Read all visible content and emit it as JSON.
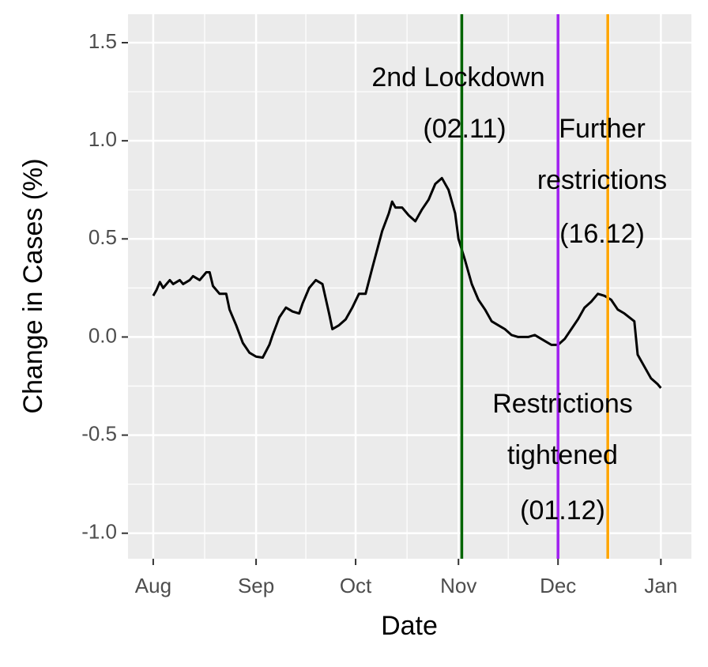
{
  "chart_data": {
    "type": "line",
    "x_label": "Date",
    "y_label": "Change in Cases (%)",
    "x": [
      0,
      1,
      2,
      3,
      5,
      6,
      8,
      9,
      11,
      12,
      14,
      16,
      17,
      18,
      20,
      22,
      23,
      25,
      27,
      29,
      31,
      33,
      35,
      36,
      38,
      40,
      42,
      44,
      45,
      47,
      49,
      51,
      53,
      54,
      56,
      58,
      60,
      62,
      64,
      66,
      69,
      71,
      72,
      73,
      75,
      77,
      79,
      81,
      83,
      85,
      87,
      89,
      91,
      92,
      94,
      96,
      98,
      100,
      102,
      104,
      106,
      108,
      110,
      113,
      115,
      118,
      120,
      122,
      124,
      126,
      128,
      130,
      132,
      134,
      136,
      138,
      140,
      142,
      145,
      146,
      148,
      150,
      152,
      153
    ],
    "values": [
      0.21,
      0.24,
      0.28,
      0.25,
      0.29,
      0.27,
      0.29,
      0.27,
      0.29,
      0.31,
      0.29,
      0.33,
      0.33,
      0.26,
      0.22,
      0.22,
      0.14,
      0.06,
      -0.03,
      -0.08,
      -0.1,
      -0.105,
      -0.04,
      0.01,
      0.1,
      0.15,
      0.13,
      0.12,
      0.17,
      0.25,
      0.29,
      0.27,
      0.12,
      0.04,
      0.06,
      0.09,
      0.15,
      0.22,
      0.22,
      0.35,
      0.54,
      0.63,
      0.69,
      0.66,
      0.66,
      0.62,
      0.59,
      0.65,
      0.7,
      0.78,
      0.81,
      0.75,
      0.63,
      0.5,
      0.39,
      0.27,
      0.19,
      0.14,
      0.08,
      0.06,
      0.04,
      0.01,
      0,
      0,
      0.01,
      -0.02,
      -0.04,
      -0.04,
      -0.01,
      0.04,
      0.09,
      0.15,
      0.18,
      0.22,
      0.21,
      0.19,
      0.14,
      0.12,
      0.08,
      -0.09,
      -0.15,
      -0.21,
      -0.24,
      -0.26
    ],
    "color": "#000000",
    "xlim": [
      -7.6,
      162.2
    ],
    "xticks": [
      {
        "value": 0,
        "label": "Aug"
      },
      {
        "value": 31,
        "label": "Sep"
      },
      {
        "value": 61,
        "label": "Oct"
      },
      {
        "value": 92,
        "label": "Nov"
      },
      {
        "value": 122,
        "label": "Dec"
      },
      {
        "value": 153,
        "label": "Jan"
      }
    ],
    "ylim": [
      -1.13,
      1.645
    ],
    "yticks": [
      {
        "value": -1,
        "label": "-1.0"
      },
      -0.5,
      {
        "value": 0,
        "label": "0.0"
      },
      0.5,
      {
        "value": 1,
        "label": "1.0"
      },
      1.5
    ],
    "grid": true,
    "vlines": [
      {
        "x": 93,
        "color": "#006400"
      },
      {
        "x": 122,
        "color": "#a020f0"
      },
      {
        "x": 137,
        "color": "#ffa500"
      }
    ],
    "annotations": [
      {
        "lines": [
          "2nd Lockdown",
          "(02.11)"
        ]
      },
      {
        "lines": [
          "Further",
          "restrictions",
          "(16.12)"
        ]
      },
      {
        "lines": [
          "Restrictions",
          "tightened",
          "(01.12)"
        ]
      }
    ]
  }
}
